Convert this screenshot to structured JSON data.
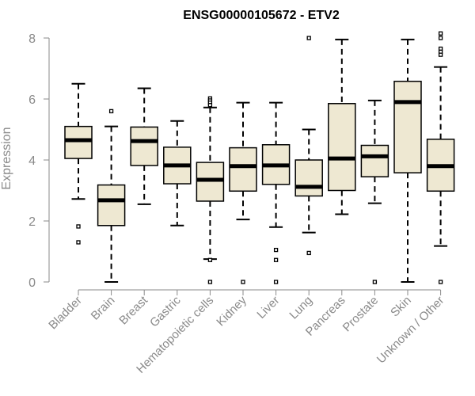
{
  "chart_data": {
    "type": "boxplot",
    "title": "ENSG00000105672 - ETV2",
    "xlabel": "",
    "ylabel": "Expression",
    "ylim": [
      0,
      8
    ],
    "yticks": [
      0,
      2,
      4,
      6,
      8
    ],
    "grid": false,
    "legend": "none",
    "colors": {
      "box_fill": "#eee8d2",
      "stroke": "#000000",
      "axis": "#8a8a8a"
    },
    "categories": [
      "Bladder",
      "Brain",
      "Breast",
      "Gastric",
      "Hematopoietic cells",
      "Kidney",
      "Liver",
      "Lung",
      "Pancreas",
      "Prostate",
      "Skin",
      "Unknown / Other"
    ],
    "boxes": [
      {
        "name": "Bladder",
        "whisker_low": 2.72,
        "q1": 4.05,
        "median": 4.65,
        "q3": 5.1,
        "whisker_high": 6.5,
        "outliers": [
          1.82,
          1.3
        ]
      },
      {
        "name": "Brain",
        "whisker_low": 0.0,
        "q1": 1.85,
        "median": 2.68,
        "q3": 3.18,
        "whisker_high": 5.1,
        "outliers": [
          5.6
        ]
      },
      {
        "name": "Breast",
        "whisker_low": 2.55,
        "q1": 3.82,
        "median": 4.62,
        "q3": 5.08,
        "whisker_high": 6.35,
        "outliers": []
      },
      {
        "name": "Gastric",
        "whisker_low": 1.85,
        "q1": 3.22,
        "median": 3.82,
        "q3": 4.42,
        "whisker_high": 5.28,
        "outliers": []
      },
      {
        "name": "Hematopoietic cells",
        "whisker_low": 0.75,
        "q1": 2.65,
        "median": 3.35,
        "q3": 3.92,
        "whisker_high": 5.72,
        "outliers": [
          6.02,
          5.95,
          5.88,
          5.8,
          0.72,
          0.0
        ]
      },
      {
        "name": "Kidney",
        "whisker_low": 2.05,
        "q1": 2.98,
        "median": 3.8,
        "q3": 4.4,
        "whisker_high": 5.88,
        "outliers": [
          0.0
        ]
      },
      {
        "name": "Liver",
        "whisker_low": 1.8,
        "q1": 3.2,
        "median": 3.82,
        "q3": 4.5,
        "whisker_high": 5.88,
        "outliers": [
          1.05,
          0.72,
          0.0
        ]
      },
      {
        "name": "Lung",
        "whisker_low": 1.62,
        "q1": 2.82,
        "median": 3.12,
        "q3": 4.0,
        "whisker_high": 5.0,
        "outliers": [
          8.0,
          0.95
        ]
      },
      {
        "name": "Pancreas",
        "whisker_low": 2.22,
        "q1": 3.0,
        "median": 4.05,
        "q3": 5.85,
        "whisker_high": 7.95,
        "outliers": []
      },
      {
        "name": "Prostate",
        "whisker_low": 2.58,
        "q1": 3.45,
        "median": 4.12,
        "q3": 4.48,
        "whisker_high": 5.95,
        "outliers": [
          0.0
        ]
      },
      {
        "name": "Skin",
        "whisker_low": 0.0,
        "q1": 3.58,
        "median": 5.9,
        "q3": 6.58,
        "whisker_high": 7.95,
        "outliers": []
      },
      {
        "name": "Unknown / Other",
        "whisker_low": 1.18,
        "q1": 2.98,
        "median": 3.8,
        "q3": 4.68,
        "whisker_high": 7.05,
        "outliers": [
          8.15,
          8.0,
          7.65,
          7.55,
          7.45,
          0.0
        ]
      }
    ]
  }
}
